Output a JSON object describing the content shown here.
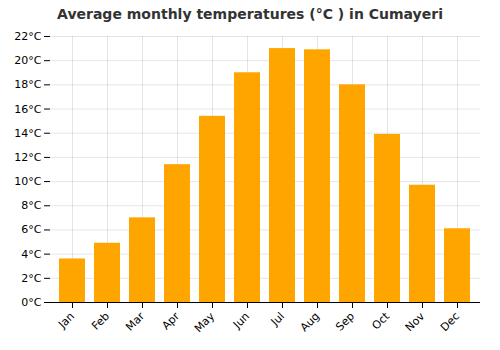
{
  "chart_data": {
    "type": "bar",
    "title": "Average monthly temperatures (°C ) in Cumayeri",
    "categories": [
      "Jan",
      "Feb",
      "Mar",
      "Apr",
      "May",
      "Jun",
      "Jul",
      "Aug",
      "Sep",
      "Oct",
      "Nov",
      "Dec"
    ],
    "values": [
      3.6,
      4.9,
      7.0,
      11.4,
      15.4,
      19.0,
      21.0,
      20.9,
      18.0,
      13.9,
      9.7,
      6.1
    ],
    "color": "#FFA500",
    "ylim": [
      0,
      22
    ],
    "yticks": [
      {
        "value": 0,
        "label": "0°C"
      },
      {
        "value": 2,
        "label": "2°C"
      },
      {
        "value": 4,
        "label": "4°C"
      },
      {
        "value": 6,
        "label": "6°C"
      },
      {
        "value": 8,
        "label": "8°C"
      },
      {
        "value": 10,
        "label": "10°C"
      },
      {
        "value": 12,
        "label": "12°C"
      },
      {
        "value": 14,
        "label": "14°C"
      },
      {
        "value": 16,
        "label": "16°C"
      },
      {
        "value": 18,
        "label": "18°C"
      },
      {
        "value": 20,
        "label": "20°C"
      },
      {
        "value": 22,
        "label": "22°C"
      }
    ],
    "grid": true
  }
}
